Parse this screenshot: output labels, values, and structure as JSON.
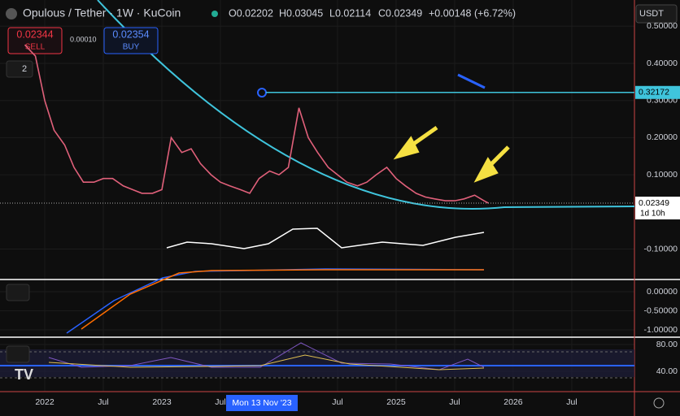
{
  "header": {
    "symbol": "Opulous / Tether · 1W · KuCoin",
    "open": "O0.02202",
    "high": "H0.03045",
    "low": "L0.02114",
    "close": "C0.02349",
    "change": "+0.00148 (+6.72%)"
  },
  "trade": {
    "sell_price": "0.02344",
    "sell_label": "SELL",
    "spread": "0.00010",
    "buy_price": "0.02354",
    "buy_label": "BUY"
  },
  "indicator_count": "2",
  "currency": "USDT",
  "crosshair_label": "Mon 13 Nov '23",
  "chart_data": {
    "type": "line",
    "grid": true,
    "series": [
      {
        "name": "OPUL/USDT",
        "color": "#e0607a",
        "x": [
          2021.83,
          2021.92,
          2022.0,
          2022.08,
          2022.17,
          2022.25,
          2022.33,
          2022.42,
          2022.5,
          2022.58,
          2022.67,
          2022.75,
          2022.83,
          2022.92,
          2023.0,
          2023.08,
          2023.17,
          2023.25,
          2023.33,
          2023.42,
          2023.5,
          2023.58,
          2023.67,
          2023.75,
          2023.83,
          2023.92,
          2024.0,
          2024.08,
          2024.17,
          2024.25,
          2024.33,
          2024.42,
          2024.5,
          2024.58,
          2024.67,
          2024.75,
          2024.83,
          2024.92,
          2025.0,
          2025.08,
          2025.17,
          2025.25,
          2025.33,
          2025.42,
          2025.5,
          2025.58,
          2025.67,
          2025.75,
          2025.79
        ],
        "values": [
          0.45,
          0.42,
          0.3,
          0.22,
          0.18,
          0.12,
          0.08,
          0.08,
          0.09,
          0.09,
          0.07,
          0.06,
          0.05,
          0.05,
          0.06,
          0.2,
          0.16,
          0.17,
          0.13,
          0.1,
          0.08,
          0.07,
          0.06,
          0.05,
          0.09,
          0.11,
          0.1,
          0.12,
          0.28,
          0.2,
          0.16,
          0.12,
          0.1,
          0.08,
          0.07,
          0.08,
          0.1,
          0.12,
          0.09,
          0.07,
          0.05,
          0.04,
          0.035,
          0.03,
          0.03,
          0.035,
          0.045,
          0.03,
          0.02349
        ]
      }
    ],
    "xlim": [
      2021.618,
      2027.035
    ],
    "xticks": [
      {
        "value": 2022,
        "label": "2022"
      },
      {
        "value": 2022.5,
        "label": "Jul"
      },
      {
        "value": 2023,
        "label": "2023"
      },
      {
        "value": 2023.5,
        "label": "Jul"
      },
      {
        "value": 2024.5,
        "label": "Jul"
      },
      {
        "value": 2025,
        "label": "2025"
      },
      {
        "value": 2025.5,
        "label": "Jul"
      },
      {
        "value": 2026,
        "label": "2026"
      },
      {
        "value": 2026.5,
        "label": "Jul"
      }
    ],
    "ylim": [
      -0.1799,
      0.5707
    ],
    "yticks": [
      {
        "value": 0.5,
        "label": "0.50000"
      },
      {
        "value": 0.4,
        "label": "0.40000"
      },
      {
        "value": 0.3,
        "label": "0.30000"
      },
      {
        "value": 0.2,
        "label": "0.20000"
      },
      {
        "value": 0.1,
        "label": "0.10000"
      },
      {
        "value": -0.1,
        "label": "-0.10000"
      }
    ],
    "hline": 0.32172,
    "last_price": 0.02349,
    "countdown": "1d 10h",
    "macd_ylim": [
      -1.128,
      0.298
    ],
    "macd_yticks": [
      {
        "value": 0,
        "label": "0.00000"
      },
      {
        "value": -0.5,
        "label": "-0.50000"
      },
      {
        "value": -1,
        "label": "-1.00000"
      }
    ],
    "rsi_ylim": [
      12.2,
      87.3
    ],
    "rsi_yticks": [
      {
        "value": 80,
        "label": "80.00"
      },
      {
        "value": 40,
        "label": "40.00"
      }
    ]
  }
}
